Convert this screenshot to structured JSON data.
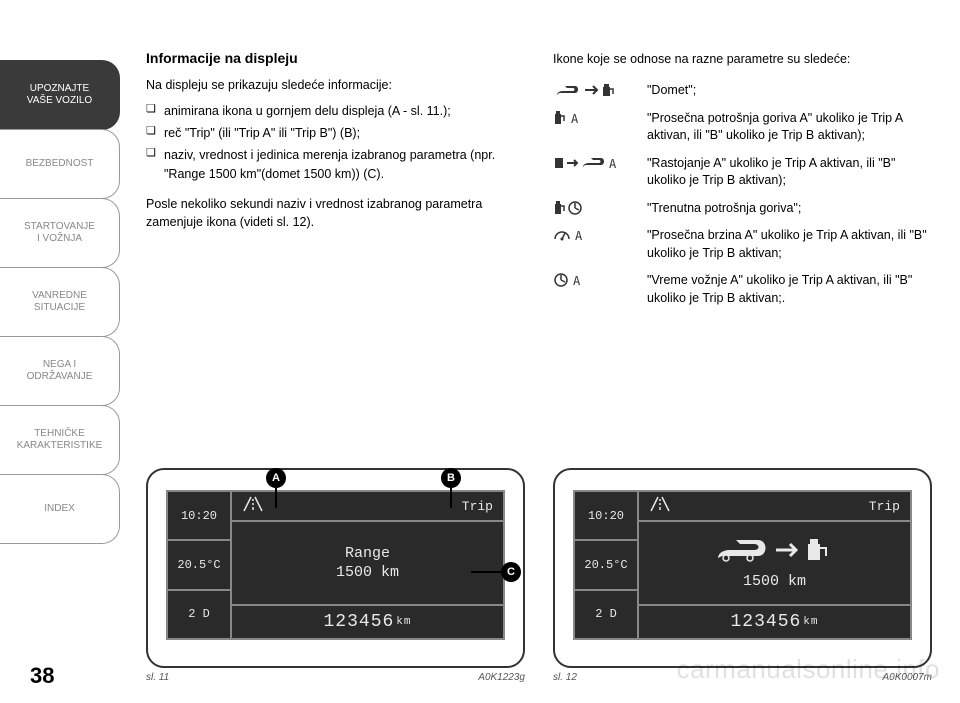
{
  "sidebar": {
    "tabs": [
      {
        "label": "UPOZNAJTE\nVAŠE VOZILO",
        "active": true
      },
      {
        "label": "BEZBEDNOST",
        "active": false
      },
      {
        "label": "STARTOVANJE\nI VOŽNJA",
        "active": false
      },
      {
        "label": "VANREDNE\nSITUACIJE",
        "active": false
      },
      {
        "label": "NEGA I\nODRŽAVANJE",
        "active": false
      },
      {
        "label": "TEHNIČKE\nKARAKTERISTIKE",
        "active": false
      },
      {
        "label": "INDEX",
        "active": false
      }
    ]
  },
  "left": {
    "heading": "Informacije na displeju",
    "intro": "Na displeju se prikazuju sledeće informacije:",
    "bullets": [
      "animirana ikona u gornjem delu displeja (A - sl. 11.);",
      "reč \"Trip\" (ili \"Trip A\" ili \"Trip B\") (B);",
      "naziv, vrednost i jedinica merenja izabranog parametra (npr. \"Range 1500 km\"(domet 1500 km)) (C)."
    ],
    "outro": "Posle nekoliko sekundi naziv i vrednost izabranog parametra zamenjuje ikona (videti sl. 12)."
  },
  "right": {
    "intro": "Ikone koje se odnose na razne parametre su sledeće:",
    "items": [
      {
        "text": "\"Domet\";"
      },
      {
        "text": "\"Prosečna potrošnja goriva A\" ukoliko je Trip A aktivan, ili \"B\" ukoliko je Trip B aktivan);"
      },
      {
        "text": "\"Rastojanje A\" ukoliko je Trip A aktivan, ili \"B\" ukoliko je Trip B aktivan);"
      },
      {
        "text": "\"Trenutna potrošnja goriva\";"
      },
      {
        "text": "\"Prosečna brzina A\" ukoliko je Trip A aktivan, ili \"B\" ukoliko je Trip B aktivan;"
      },
      {
        "text": "\"Vreme vožnje A\" ukoliko je Trip A aktivan, ili \"B\" ukoliko je Trip B aktivan;."
      }
    ]
  },
  "fig11": {
    "time": "10:20",
    "temp": "20.5°C",
    "gear": "2 D",
    "trip": "Trip",
    "line1": "Range",
    "line2": "1500 km",
    "odo": "123456",
    "odo_unit": "km",
    "caption": "sl. 11",
    "code": "A0K1223g",
    "callouts": {
      "A": "A",
      "B": "B",
      "C": "C"
    }
  },
  "fig12": {
    "time": "10:20",
    "temp": "20.5°C",
    "gear": "2 D",
    "trip": "Trip",
    "line2": "1500 km",
    "odo": "123456",
    "odo_unit": "km",
    "caption": "sl. 12",
    "code": "A0K0007m"
  },
  "page_number": "38",
  "watermark": "carmanualsonline.info",
  "colors": {
    "lcd_bg": "#2a2a2a",
    "lcd_border": "#888888",
    "lcd_text": "#e8e8e8",
    "tab_active_bg": "#3a3a3a"
  }
}
